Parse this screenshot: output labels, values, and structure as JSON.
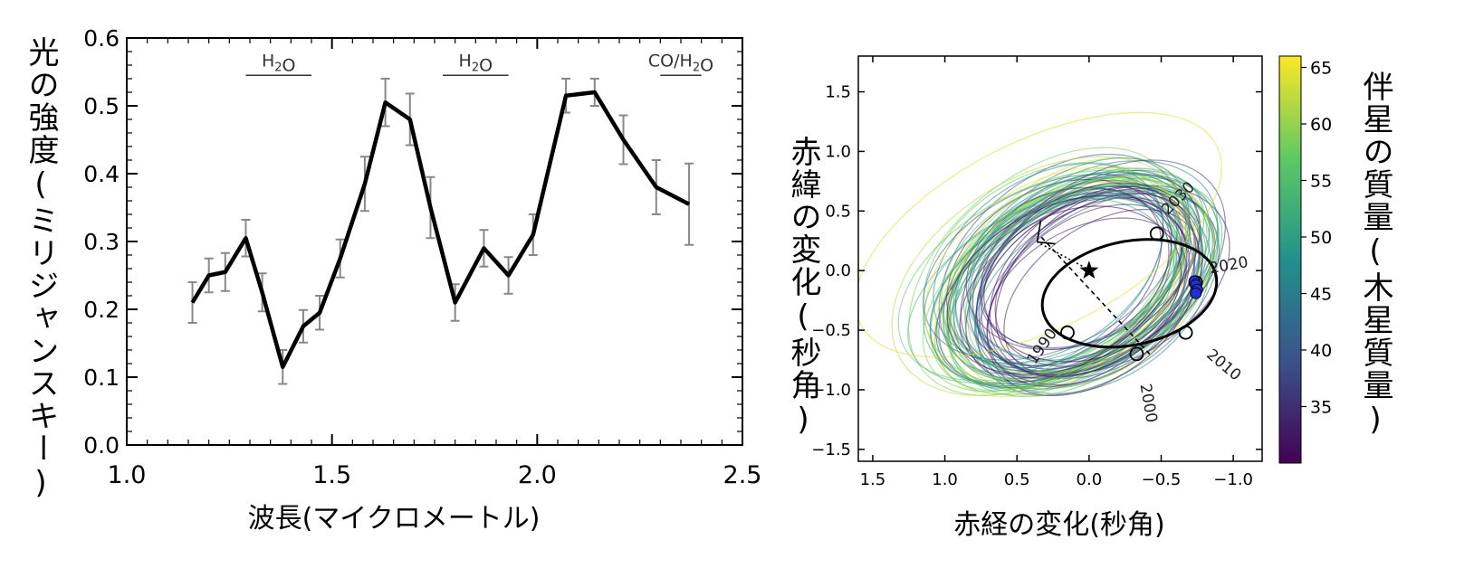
{
  "chart_data": [
    {
      "type": "line",
      "xlabel": "波長(マイクロメートル)",
      "ylabel": "光の強度(ミリジャンスキー)",
      "xlim": [
        1.0,
        2.5
      ],
      "ylim": [
        0.0,
        0.6
      ],
      "xticks": [
        "1.0",
        "1.5",
        "2.0",
        "2.5"
      ],
      "yticks": [
        "0.0",
        "0.1",
        "0.2",
        "0.3",
        "0.4",
        "0.5",
        "0.6"
      ],
      "series": [
        {
          "x": [
            1.16,
            1.2,
            1.24,
            1.29,
            1.33,
            1.38,
            1.43,
            1.47,
            1.52,
            1.58,
            1.63,
            1.69,
            1.74,
            1.8,
            1.87,
            1.93,
            1.99,
            2.07,
            2.14,
            2.21,
            2.29,
            2.37
          ],
          "y": [
            0.21,
            0.25,
            0.255,
            0.305,
            0.225,
            0.115,
            0.175,
            0.195,
            0.275,
            0.385,
            0.505,
            0.48,
            0.35,
            0.21,
            0.29,
            0.25,
            0.31,
            0.515,
            0.52,
            0.45,
            0.38,
            0.355
          ],
          "yerr": [
            0.03,
            0.025,
            0.028,
            0.027,
            0.028,
            0.025,
            0.024,
            0.025,
            0.028,
            0.04,
            0.035,
            0.038,
            0.045,
            0.027,
            0.027,
            0.027,
            0.03,
            0.025,
            0.02,
            0.036,
            0.04,
            0.06
          ]
        }
      ],
      "annotations": [
        {
          "text": "H2O",
          "x_range": [
            1.29,
            1.45
          ],
          "y": 0.545
        },
        {
          "text": "H2O",
          "x_range": [
            1.77,
            1.93
          ],
          "y": 0.545
        },
        {
          "text": "CO/H2O",
          "x_range": [
            2.3,
            2.4
          ],
          "y": 0.545
        }
      ]
    },
    {
      "type": "scatter",
      "xlabel": "赤経の変化(秒角)",
      "ylabel": "赤緯の変化(秒角)",
      "xlim": [
        1.6,
        -1.2
      ],
      "ylim": [
        -1.6,
        1.8
      ],
      "xticks": [
        "1.5",
        "1.0",
        "0.5",
        "0.0",
        "−0.5",
        "−1.0"
      ],
      "yticks": [
        "−1.5",
        "−1.0",
        "−0.5",
        "0.0",
        "0.5",
        "1.0",
        "1.5"
      ],
      "colorbar": {
        "label": "伴星の質量(木星質量)",
        "range": [
          30,
          66
        ],
        "ticks": [
          "35",
          "40",
          "45",
          "50",
          "55",
          "60",
          "65"
        ],
        "colormap": "viridis"
      },
      "best_orbit_epochs": [
        {
          "label": "1990",
          "x": 0.15,
          "y": -0.52
        },
        {
          "label": "2000",
          "x": -0.33,
          "y": -0.7
        },
        {
          "label": "2010",
          "x": -0.67,
          "y": -0.52
        },
        {
          "label": "2020",
          "x": -0.74,
          "y": -0.1
        },
        {
          "label": "2030",
          "x": -0.47,
          "y": 0.31
        }
      ],
      "observed_points": [
        {
          "x": -0.73,
          "y": -0.09
        },
        {
          "x": -0.74,
          "y": -0.12
        },
        {
          "x": -0.75,
          "y": -0.16
        },
        {
          "x": -0.74,
          "y": -0.19
        }
      ],
      "star": {
        "x": 0.0,
        "y": 0.0
      }
    }
  ]
}
